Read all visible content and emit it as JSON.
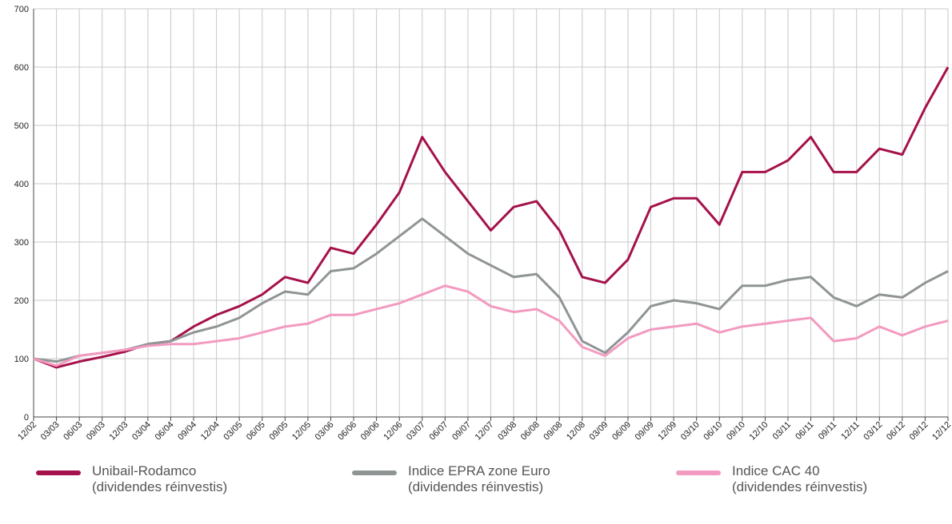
{
  "chart_data": {
    "type": "line",
    "categories": [
      "12/02",
      "03/03",
      "06/03",
      "09/03",
      "12/03",
      "03/04",
      "06/04",
      "09/04",
      "12/04",
      "03/05",
      "06/05",
      "09/05",
      "12/05",
      "03/06",
      "06/06",
      "09/06",
      "12/06",
      "03/07",
      "06/07",
      "09/07",
      "12/07",
      "03/08",
      "06/08",
      "09/08",
      "12/08",
      "03/09",
      "06/09",
      "09/09",
      "12/09",
      "03/10",
      "06/10",
      "09/10",
      "12/10",
      "03/11",
      "06/11",
      "09/11",
      "12/11",
      "03/12",
      "06/12",
      "09/12",
      "12/12"
    ],
    "series": [
      {
        "name": "Unibail-Rodamco\n(dividendes réinvestis)",
        "color": "#a5114a",
        "values": [
          100,
          85,
          95,
          103,
          112,
          125,
          130,
          155,
          175,
          190,
          210,
          240,
          230,
          290,
          280,
          330,
          385,
          480,
          420,
          370,
          320,
          360,
          370,
          320,
          240,
          230,
          270,
          360,
          375,
          375,
          330,
          420,
          420,
          440,
          480,
          420,
          420,
          460,
          450,
          530,
          600
        ]
      },
      {
        "name": "Indice EPRA zone Euro\n(dividendes réinvestis)",
        "color": "#8f9495",
        "values": [
          100,
          95,
          105,
          110,
          115,
          125,
          130,
          145,
          155,
          170,
          195,
          215,
          210,
          250,
          255,
          280,
          310,
          340,
          310,
          280,
          260,
          240,
          245,
          205,
          130,
          110,
          145,
          190,
          200,
          195,
          185,
          225,
          225,
          235,
          240,
          205,
          190,
          210,
          205,
          230,
          250
        ]
      },
      {
        "name": "Indice CAC 40\n(dividendes réinvestis)",
        "color": "#f39ac0",
        "values": [
          100,
          88,
          105,
          110,
          115,
          122,
          125,
          125,
          130,
          135,
          145,
          155,
          160,
          175,
          175,
          185,
          195,
          210,
          225,
          215,
          190,
          180,
          185,
          165,
          120,
          105,
          135,
          150,
          155,
          160,
          145,
          155,
          160,
          165,
          170,
          130,
          135,
          155,
          140,
          155,
          165
        ]
      }
    ],
    "ylim": [
      0,
      700
    ],
    "yticks": [
      0,
      100,
      200,
      300,
      400,
      500,
      600,
      700
    ],
    "grid": true
  }
}
